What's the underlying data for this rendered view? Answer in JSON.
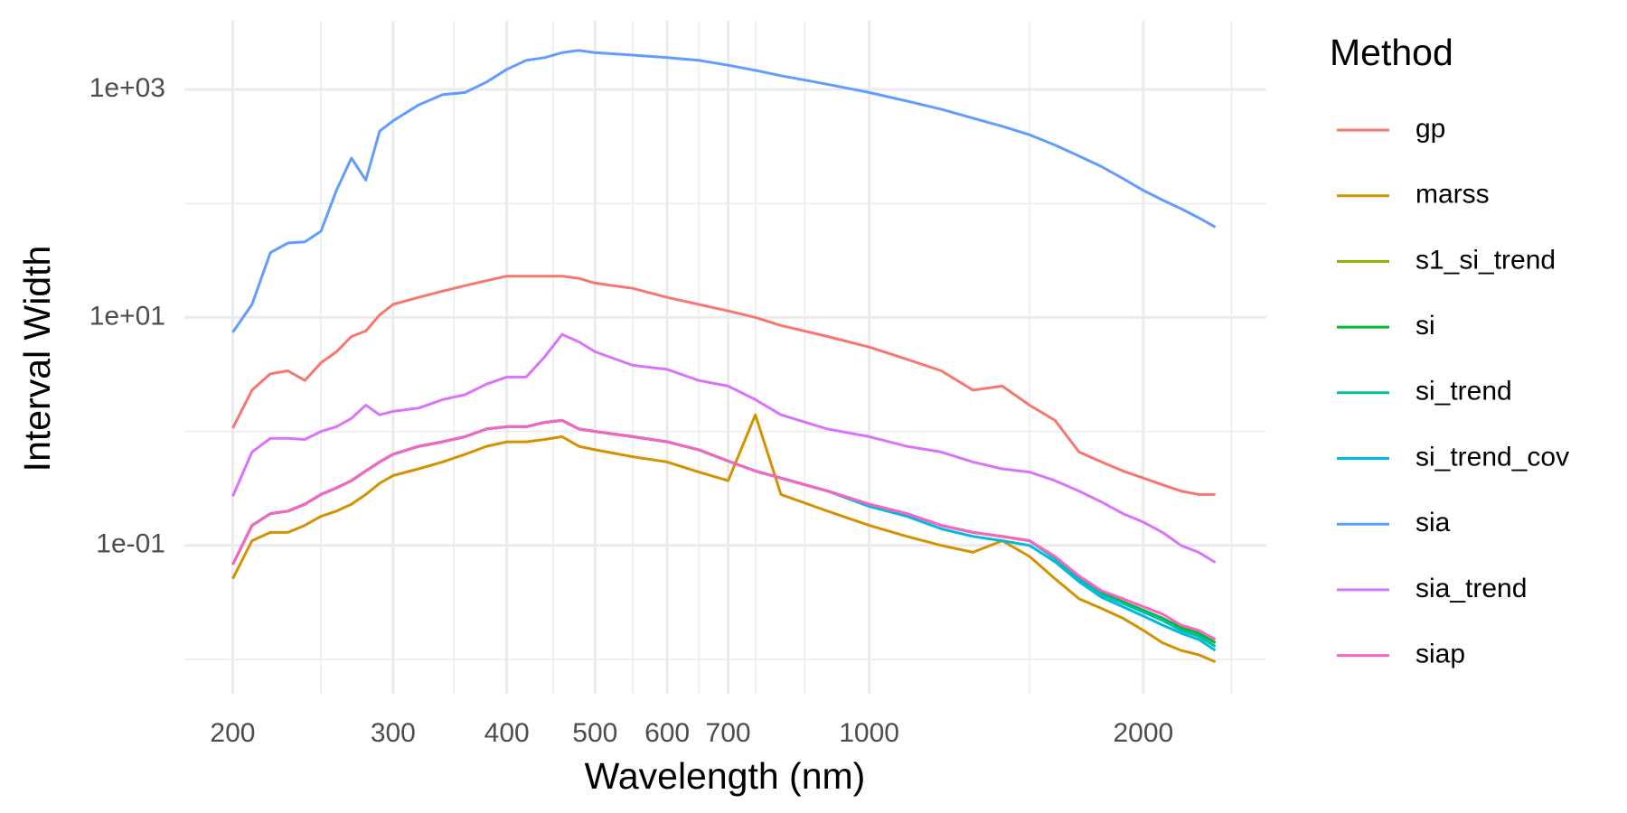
{
  "chart_data": {
    "type": "line",
    "x_label": "Wavelength (nm)",
    "y_label": "Interval Width",
    "legend_title": "Method",
    "x_log": true,
    "y_log": true,
    "grid": true,
    "legend_position": "right",
    "xlim": [
      177,
      2730
    ],
    "ylim": [
      0.005,
      4000
    ],
    "xticks": [
      200,
      300,
      400,
      500,
      600,
      700,
      1000,
      2000
    ],
    "x_minor_ticks": [
      250,
      350,
      450,
      550,
      650,
      750,
      850,
      1500,
      2500
    ],
    "yticks": [
      {
        "value": 0.1,
        "label": "1e-01"
      },
      {
        "value": 10,
        "label": "1e+01"
      },
      {
        "value": 1000,
        "label": "1e+03"
      }
    ],
    "y_minor_ticks": [
      0.01,
      1,
      100
    ],
    "x": [
      200,
      210,
      220,
      230,
      240,
      250,
      260,
      270,
      280,
      290,
      300,
      320,
      340,
      360,
      380,
      400,
      420,
      440,
      460,
      480,
      500,
      550,
      600,
      650,
      700,
      750,
      800,
      900,
      1000,
      1100,
      1200,
      1300,
      1400,
      1500,
      1600,
      1700,
      1800,
      1900,
      2000,
      2100,
      2200,
      2300,
      2400
    ],
    "series": [
      {
        "name": "gp",
        "color": "#F8766D",
        "values": [
          1.07,
          2.3,
          3.2,
          3.4,
          2.8,
          4,
          5,
          6.8,
          7.6,
          10.5,
          13,
          15,
          17,
          19,
          21,
          23,
          23,
          23,
          23,
          22,
          20,
          18,
          15,
          13,
          11.4,
          10,
          8.5,
          6.8,
          5.5,
          4.3,
          3.4,
          2.3,
          2.5,
          1.7,
          1.25,
          0.66,
          0.54,
          0.45,
          0.39,
          0.34,
          0.3,
          0.28,
          0.28
        ]
      },
      {
        "name": "marss",
        "color": "#D39200",
        "values": [
          0.051,
          0.11,
          0.13,
          0.13,
          0.15,
          0.18,
          0.2,
          0.23,
          0.28,
          0.35,
          0.41,
          0.47,
          0.54,
          0.63,
          0.74,
          0.81,
          0.81,
          0.85,
          0.9,
          0.74,
          0.69,
          0.6,
          0.54,
          0.44,
          0.37,
          1.4,
          0.28,
          0.2,
          0.15,
          0.12,
          0.1,
          0.087,
          0.11,
          0.08,
          0.051,
          0.034,
          0.028,
          0.023,
          0.018,
          0.014,
          0.012,
          0.011,
          0.0095
        ]
      },
      {
        "name": "s1_si_trend",
        "color": "#93AA00",
        "values": [
          0.068,
          0.15,
          0.19,
          0.2,
          0.23,
          0.28,
          0.32,
          0.37,
          0.45,
          0.54,
          0.63,
          0.74,
          0.81,
          0.9,
          1.05,
          1.1,
          1.1,
          1.2,
          1.25,
          1.05,
          1.0,
          0.9,
          0.81,
          0.69,
          0.55,
          0.45,
          0.39,
          0.3,
          0.23,
          0.19,
          0.15,
          0.13,
          0.12,
          0.11,
          0.078,
          0.052,
          0.038,
          0.032,
          0.027,
          0.023,
          0.019,
          0.017,
          0.014
        ]
      },
      {
        "name": "si",
        "color": "#00BA38",
        "values": [
          0.068,
          0.15,
          0.19,
          0.2,
          0.23,
          0.28,
          0.32,
          0.37,
          0.45,
          0.54,
          0.63,
          0.74,
          0.81,
          0.9,
          1.05,
          1.1,
          1.1,
          1.2,
          1.25,
          1.05,
          1.0,
          0.9,
          0.81,
          0.69,
          0.55,
          0.45,
          0.39,
          0.3,
          0.23,
          0.19,
          0.15,
          0.13,
          0.12,
          0.11,
          0.078,
          0.052,
          0.038,
          0.032,
          0.027,
          0.023,
          0.019,
          0.017,
          0.014
        ]
      },
      {
        "name": "si_trend",
        "color": "#00C19F",
        "values": [
          0.068,
          0.15,
          0.19,
          0.2,
          0.23,
          0.28,
          0.32,
          0.37,
          0.45,
          0.54,
          0.63,
          0.74,
          0.81,
          0.9,
          1.05,
          1.1,
          1.1,
          1.2,
          1.25,
          1.05,
          1.0,
          0.9,
          0.81,
          0.69,
          0.55,
          0.45,
          0.39,
          0.3,
          0.23,
          0.19,
          0.15,
          0.13,
          0.12,
          0.11,
          0.077,
          0.051,
          0.037,
          0.031,
          0.026,
          0.022,
          0.018,
          0.016,
          0.013
        ]
      },
      {
        "name": "si_trend_cov",
        "color": "#00B9E3",
        "values": [
          0.068,
          0.15,
          0.19,
          0.2,
          0.23,
          0.28,
          0.32,
          0.37,
          0.45,
          0.54,
          0.63,
          0.74,
          0.81,
          0.9,
          1.05,
          1.1,
          1.1,
          1.2,
          1.25,
          1.05,
          1.0,
          0.9,
          0.81,
          0.69,
          0.55,
          0.45,
          0.39,
          0.3,
          0.22,
          0.18,
          0.14,
          0.12,
          0.11,
          0.1,
          0.072,
          0.048,
          0.035,
          0.029,
          0.024,
          0.02,
          0.017,
          0.015,
          0.012
        ]
      },
      {
        "name": "sia",
        "color": "#619CFF",
        "values": [
          7.4,
          13,
          37,
          45,
          46,
          57,
          130,
          250,
          160,
          430,
          530,
          730,
          900,
          940,
          1160,
          1500,
          1800,
          1900,
          2100,
          2200,
          2100,
          2000,
          1900,
          1800,
          1630,
          1470,
          1320,
          1110,
          940,
          790,
          670,
          560,
          475,
          400,
          325,
          260,
          210,
          165,
          130,
          107,
          90,
          75,
          62
        ]
      },
      {
        "name": "sia_trend",
        "color": "#DB72FB",
        "values": [
          0.27,
          0.66,
          0.87,
          0.87,
          0.85,
          1.0,
          1.1,
          1.3,
          1.7,
          1.4,
          1.5,
          1.6,
          1.9,
          2.1,
          2.6,
          3.0,
          3.0,
          4.5,
          7.1,
          6.1,
          5,
          3.8,
          3.5,
          2.8,
          2.5,
          1.9,
          1.4,
          1.05,
          0.9,
          0.74,
          0.66,
          0.54,
          0.47,
          0.44,
          0.37,
          0.3,
          0.24,
          0.19,
          0.16,
          0.13,
          0.1,
          0.087,
          0.071
        ]
      },
      {
        "name": "siap",
        "color": "#FF61C3",
        "values": [
          0.068,
          0.15,
          0.19,
          0.2,
          0.23,
          0.28,
          0.32,
          0.37,
          0.45,
          0.54,
          0.63,
          0.74,
          0.81,
          0.9,
          1.05,
          1.1,
          1.1,
          1.2,
          1.25,
          1.05,
          1.0,
          0.9,
          0.81,
          0.69,
          0.55,
          0.45,
          0.39,
          0.3,
          0.23,
          0.19,
          0.15,
          0.13,
          0.12,
          0.11,
          0.08,
          0.054,
          0.04,
          0.034,
          0.029,
          0.025,
          0.02,
          0.018,
          0.015
        ]
      }
    ]
  }
}
